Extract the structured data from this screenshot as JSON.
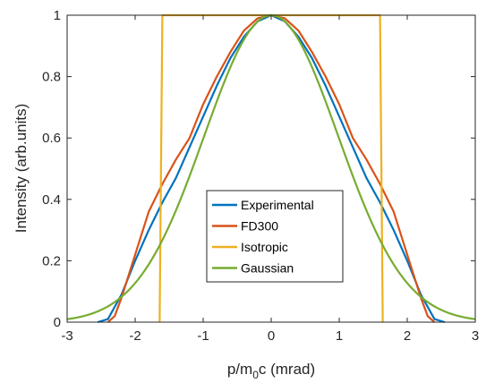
{
  "chart_data": {
    "type": "line",
    "title": "",
    "xlabel_main": "p/m",
    "xlabel_sub": "0",
    "xlabel_rest": "c (mrad)",
    "ylabel": "Intensity (arb.units)",
    "xlim": [
      -3,
      3
    ],
    "ylim": [
      0,
      1
    ],
    "xticks": [
      -3,
      -2,
      -1,
      0,
      1,
      2,
      3
    ],
    "yticks": [
      0,
      0.2,
      0.4,
      0.6,
      0.8,
      1
    ],
    "xtick_labels": [
      "-3",
      "-2",
      "-1",
      "0",
      "1",
      "2",
      "3"
    ],
    "ytick_labels": [
      "0",
      "0.2",
      "0.4",
      "0.6",
      "0.8",
      "1"
    ],
    "grid": false,
    "legend_position": "center-lower",
    "series": [
      {
        "name": "Experimental",
        "color": "#0072BD",
        "x": [
          -2.55,
          -2.4,
          -2.2,
          -2.0,
          -1.8,
          -1.6,
          -1.4,
          -1.2,
          -1.0,
          -0.8,
          -0.6,
          -0.4,
          -0.2,
          0.0,
          0.2,
          0.4,
          0.6,
          0.8,
          1.0,
          1.2,
          1.4,
          1.6,
          1.8,
          2.0,
          2.2,
          2.4,
          2.55
        ],
        "y": [
          0.0,
          0.01,
          0.09,
          0.2,
          0.3,
          0.39,
          0.47,
          0.57,
          0.67,
          0.77,
          0.86,
          0.93,
          0.98,
          1.0,
          0.98,
          0.93,
          0.86,
          0.77,
          0.67,
          0.57,
          0.47,
          0.39,
          0.3,
          0.2,
          0.09,
          0.01,
          0.0
        ]
      },
      {
        "name": "FD300",
        "color": "#D95319",
        "x": [
          -2.4,
          -2.3,
          -2.2,
          -2.1,
          -2.0,
          -1.8,
          -1.6,
          -1.4,
          -1.2,
          -1.0,
          -0.8,
          -0.6,
          -0.4,
          -0.2,
          0.0,
          0.2,
          0.4,
          0.6,
          0.8,
          1.0,
          1.2,
          1.4,
          1.6,
          1.8,
          2.0,
          2.1,
          2.2,
          2.3,
          2.4
        ],
        "y": [
          0.0,
          0.02,
          0.08,
          0.15,
          0.22,
          0.36,
          0.45,
          0.53,
          0.6,
          0.71,
          0.8,
          0.88,
          0.95,
          0.99,
          1.0,
          0.99,
          0.95,
          0.88,
          0.8,
          0.71,
          0.6,
          0.53,
          0.45,
          0.36,
          0.22,
          0.15,
          0.08,
          0.02,
          0.0
        ]
      },
      {
        "name": "Isotropic",
        "color": "#EDB120",
        "x": [
          -1.64,
          -1.6,
          1.6,
          1.64
        ],
        "y": [
          0.0,
          1.0,
          1.0,
          0.0
        ]
      },
      {
        "name": "Gaussian",
        "color": "#77AC30",
        "gaussian_sigma": 0.985,
        "x_range": [
          -3,
          3
        ]
      }
    ]
  }
}
